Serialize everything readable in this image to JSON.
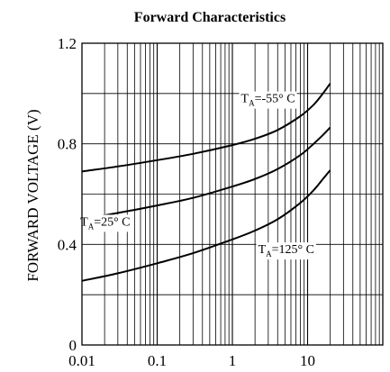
{
  "chart_data": {
    "type": "line",
    "title": "Forward Characteristics",
    "xlabel": "",
    "ylabel": "FORWARD VOLTAGE (V)",
    "x_scale": "log",
    "xlim": [
      0.01,
      100
    ],
    "ylim": [
      0,
      1.2
    ],
    "x_ticks": [
      "0.01",
      "0.1",
      "1",
      "10"
    ],
    "y_ticks": [
      "0",
      "0.4",
      "0.8",
      "1.2"
    ],
    "grid": true,
    "series": [
      {
        "name": "TA=-55° C",
        "x": [
          0.01,
          0.03,
          0.1,
          0.3,
          1,
          2,
          4,
          8,
          12,
          16,
          20
        ],
        "y": [
          0.69,
          0.71,
          0.735,
          0.76,
          0.795,
          0.82,
          0.855,
          0.91,
          0.955,
          1.0,
          1.04
        ]
      },
      {
        "name": "TA=25° C",
        "x": [
          0.01,
          0.03,
          0.1,
          0.3,
          1,
          2,
          4,
          8,
          12,
          16,
          20
        ],
        "y": [
          0.5,
          0.525,
          0.555,
          0.585,
          0.63,
          0.66,
          0.7,
          0.755,
          0.8,
          0.835,
          0.865
        ]
      },
      {
        "name": "TA=125° C",
        "x": [
          0.01,
          0.03,
          0.1,
          0.3,
          1,
          2,
          4,
          8,
          12,
          16,
          20
        ],
        "y": [
          0.255,
          0.285,
          0.325,
          0.365,
          0.42,
          0.455,
          0.5,
          0.565,
          0.615,
          0.66,
          0.695
        ]
      }
    ],
    "curve_labels": [
      {
        "prefix": "T",
        "sub": "A",
        "rest": "=-55° C",
        "x": 1.3,
        "y": 0.965
      },
      {
        "prefix": "T",
        "sub": "A",
        "rest": "=25° C",
        "x": 0.0095,
        "y": 0.475
      },
      {
        "prefix": "T",
        "sub": "A",
        "rest": "=125° C",
        "x": 2.2,
        "y": 0.365
      }
    ]
  }
}
